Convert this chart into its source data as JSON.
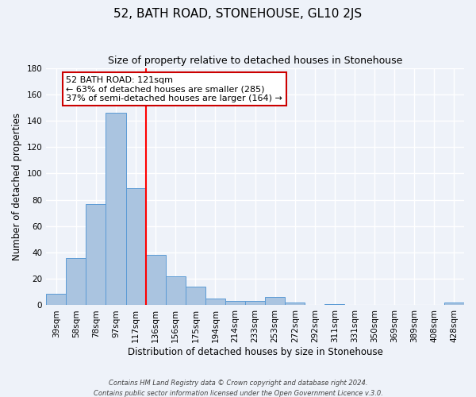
{
  "title": "52, BATH ROAD, STONEHOUSE, GL10 2JS",
  "subtitle": "Size of property relative to detached houses in Stonehouse",
  "xlabel": "Distribution of detached houses by size in Stonehouse",
  "ylabel": "Number of detached properties",
  "bar_labels": [
    "39sqm",
    "58sqm",
    "78sqm",
    "97sqm",
    "117sqm",
    "136sqm",
    "156sqm",
    "175sqm",
    "194sqm",
    "214sqm",
    "233sqm",
    "253sqm",
    "272sqm",
    "292sqm",
    "311sqm",
    "331sqm",
    "350sqm",
    "369sqm",
    "389sqm",
    "408sqm",
    "428sqm"
  ],
  "bar_values": [
    9,
    36,
    77,
    146,
    89,
    38,
    22,
    14,
    5,
    3,
    3,
    6,
    2,
    0,
    1,
    0,
    0,
    0,
    0,
    0,
    2
  ],
  "bar_color": "#aac4e0",
  "bar_edge_color": "#5b9bd5",
  "vline_color": "red",
  "ylim": [
    0,
    180
  ],
  "yticks": [
    0,
    20,
    40,
    60,
    80,
    100,
    120,
    140,
    160,
    180
  ],
  "annotation_title": "52 BATH ROAD: 121sqm",
  "annotation_line1": "← 63% of detached houses are smaller (285)",
  "annotation_line2": "37% of semi-detached houses are larger (164) →",
  "annotation_box_color": "#ffffff",
  "annotation_box_edge": "#cc0000",
  "footer1": "Contains HM Land Registry data © Crown copyright and database right 2024.",
  "footer2": "Contains public sector information licensed under the Open Government Licence v.3.0.",
  "background_color": "#eef2f9",
  "grid_color": "#ffffff",
  "title_fontsize": 11,
  "subtitle_fontsize": 9,
  "axis_label_fontsize": 8.5,
  "tick_fontsize": 7.5,
  "annotation_fontsize": 8
}
